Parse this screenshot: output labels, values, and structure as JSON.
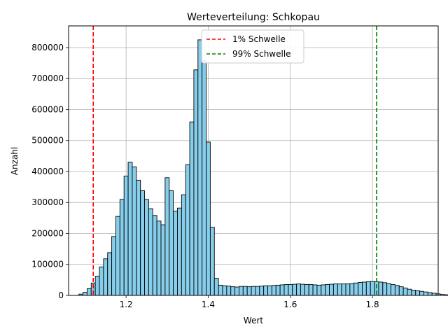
{
  "chart_data": {
    "type": "bar",
    "title": "Werteverteilung: Schkopau",
    "xlabel": "Wert",
    "ylabel": "Anzahl",
    "xlim": [
      1.06,
      1.96
    ],
    "ylim": [
      0,
      870000
    ],
    "x_ticks": [
      1.2,
      1.4,
      1.6,
      1.8
    ],
    "x_tick_labels": [
      "1.2",
      "1.4",
      "1.6",
      "1.8"
    ],
    "y_ticks": [
      0,
      100000,
      200000,
      300000,
      400000,
      500000,
      600000,
      700000,
      800000
    ],
    "y_tick_labels": [
      "0",
      "100000",
      "200000",
      "300000",
      "400000",
      "500000",
      "600000",
      "700000",
      "800000"
    ],
    "grid": true,
    "legend_position": "top-center",
    "bin_width": 0.01,
    "bin_start": 1.085,
    "counts": [
      4000,
      10000,
      22000,
      40000,
      62000,
      92000,
      118000,
      138000,
      190000,
      255000,
      310000,
      385000,
      430000,
      415000,
      372000,
      338000,
      310000,
      280000,
      258000,
      240000,
      228000,
      380000,
      338000,
      272000,
      282000,
      325000,
      422000,
      560000,
      728000,
      825000,
      758000,
      495000,
      220000,
      55000,
      33000,
      31000,
      30000,
      28000,
      27000,
      29000,
      29000,
      28000,
      29000,
      29000,
      30000,
      31000,
      31000,
      32000,
      33000,
      34000,
      35000,
      35000,
      36000,
      37000,
      36000,
      35000,
      35000,
      34000,
      33000,
      34000,
      35000,
      36000,
      37000,
      37000,
      37000,
      37000,
      38000,
      40000,
      42000,
      43000,
      44000,
      45000,
      44000,
      43000,
      41000,
      38000,
      35000,
      32000,
      28000,
      24000,
      20000,
      17000,
      15000,
      13000,
      11000,
      9000,
      7000,
      5000,
      3000,
      2000,
      1500,
      1200
    ],
    "series": [
      {
        "name": "Anzahl",
        "color": "#87ceeb",
        "edgecolor": "#000000"
      }
    ],
    "thresholds": [
      {
        "name": "1% Schwelle",
        "value": 1.12,
        "color": "#ff0000"
      },
      {
        "name": "99% Schwelle",
        "value": 1.81,
        "color": "#008000"
      }
    ]
  }
}
